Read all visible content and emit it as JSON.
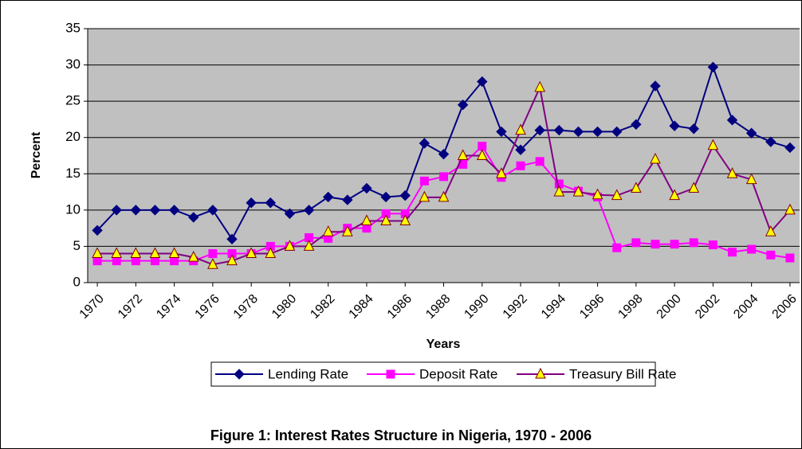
{
  "chart_data": {
    "type": "line",
    "title": "Figure 1: Interest Rates Structure in Nigeria, 1970 - 2006",
    "x_label": "Years",
    "y_label": "Percent",
    "x": [
      1970,
      1971,
      1972,
      1973,
      1974,
      1975,
      1976,
      1977,
      1978,
      1979,
      1980,
      1981,
      1982,
      1983,
      1984,
      1985,
      1986,
      1987,
      1988,
      1989,
      1990,
      1991,
      1992,
      1993,
      1994,
      1995,
      1996,
      1997,
      1998,
      1999,
      2000,
      2001,
      2002,
      2003,
      2004,
      2005,
      2006
    ],
    "xlim": [
      1969.5,
      2006.5
    ],
    "xticks": [
      1970,
      1972,
      1974,
      1976,
      1978,
      1980,
      1982,
      1984,
      1986,
      1988,
      1990,
      1992,
      1994,
      1996,
      1998,
      2000,
      2002,
      2004,
      2006
    ],
    "ylim": [
      0,
      35
    ],
    "yticks": [
      0,
      5,
      10,
      15,
      20,
      25,
      30,
      35
    ],
    "grid": true,
    "legend": "bottom",
    "series": [
      {
        "name": "Lending Rate",
        "color": "#000080",
        "marker": "diamond",
        "marker_fill": "#000080",
        "values": [
          7.2,
          10,
          10,
          10,
          10,
          9,
          10,
          6,
          11,
          11,
          9.5,
          10,
          11.8,
          11.4,
          13,
          11.8,
          12,
          19.2,
          17.7,
          24.5,
          27.7,
          20.8,
          18.3,
          21,
          21,
          20.8,
          20.8,
          20.8,
          21.8,
          27.1,
          21.6,
          21.2,
          29.7,
          22.4,
          20.6,
          19.4,
          18.6
        ]
      },
      {
        "name": "Deposit Rate",
        "color": "#ff00ff",
        "marker": "square",
        "marker_fill": "#ff00ff",
        "values": [
          3,
          3,
          3,
          3,
          3,
          3,
          4,
          4,
          4,
          5,
          5,
          6.2,
          6.1,
          7.5,
          7.5,
          9.5,
          9.5,
          14,
          14.6,
          16.3,
          18.8,
          14.5,
          16.1,
          16.7,
          13.6,
          12.6,
          11.8,
          4.8,
          5.5,
          5.3,
          5.3,
          5.5,
          5.2,
          4.2,
          4.6,
          3.8,
          3.4
        ]
      },
      {
        "name": "Treasury Bill Rate",
        "color": "#800080",
        "marker": "triangle",
        "marker_fill": "#ffff00",
        "values": [
          4,
          4,
          4,
          4,
          4,
          3.5,
          2.5,
          3,
          4,
          4,
          5,
          5,
          7,
          7,
          8.5,
          8.5,
          8.5,
          11.75,
          11.75,
          17.5,
          17.5,
          15,
          21,
          26.9,
          12.5,
          12.5,
          12.1,
          12,
          13,
          17,
          12,
          13,
          18.9,
          15,
          14.2,
          7,
          10
        ]
      }
    ]
  }
}
